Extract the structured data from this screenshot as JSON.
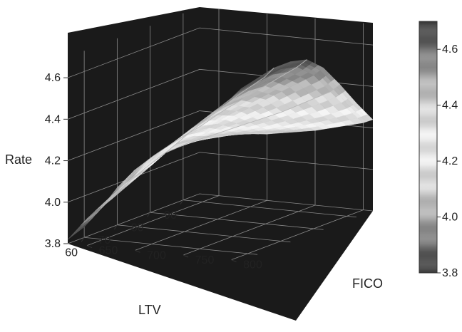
{
  "chart_data": {
    "type": "surface",
    "title": "",
    "zlabel": "Rate",
    "xlabel": "LTV",
    "ylabel": "FICO",
    "zlim": [
      3.8,
      4.7
    ],
    "xlim": [
      55,
      95
    ],
    "ylim": [
      630,
      810
    ],
    "z_ticks": [
      "3.8",
      "4.0",
      "4.2",
      "4.4",
      "4.6"
    ],
    "ltv_ticks": [
      "90",
      "80",
      "70",
      "60"
    ],
    "fico_ticks": [
      "650",
      "700",
      "750",
      "800"
    ],
    "colorbar": {
      "ticks": [
        "3.8",
        "4.0",
        "4.2",
        "4.4",
        "4.6"
      ],
      "range": [
        3.8,
        4.7
      ],
      "colormap": "gray-banded"
    },
    "grid": true,
    "ltv": [
      95,
      90,
      85,
      80,
      75,
      70,
      65,
      60,
      55
    ],
    "fico": [
      630,
      650,
      675,
      700,
      725,
      750,
      775,
      800,
      810
    ],
    "rate": [
      [
        4.09,
        4.1,
        4.11,
        4.12,
        4.14,
        4.16,
        4.19,
        4.22,
        4.24
      ],
      [
        4.07,
        4.1,
        4.13,
        4.16,
        4.19,
        4.23,
        4.27,
        4.32,
        4.35
      ],
      [
        4.06,
        4.11,
        4.16,
        4.21,
        4.26,
        4.31,
        4.37,
        4.43,
        4.47
      ],
      [
        4.05,
        4.12,
        4.19,
        4.26,
        4.33,
        4.4,
        4.47,
        4.54,
        4.58
      ],
      [
        4.03,
        4.11,
        4.2,
        4.28,
        4.37,
        4.45,
        4.53,
        4.61,
        4.65
      ],
      [
        3.98,
        4.07,
        4.17,
        4.26,
        4.36,
        4.45,
        4.54,
        4.63,
        4.67
      ],
      [
        3.91,
        4.01,
        4.12,
        4.22,
        4.33,
        4.43,
        4.53,
        4.62,
        4.67
      ],
      [
        3.85,
        3.96,
        4.07,
        4.18,
        4.3,
        4.4,
        4.5,
        4.6,
        4.65
      ],
      [
        3.82,
        3.93,
        4.05,
        4.16,
        4.28,
        4.38,
        4.48,
        4.58,
        4.63
      ]
    ]
  }
}
